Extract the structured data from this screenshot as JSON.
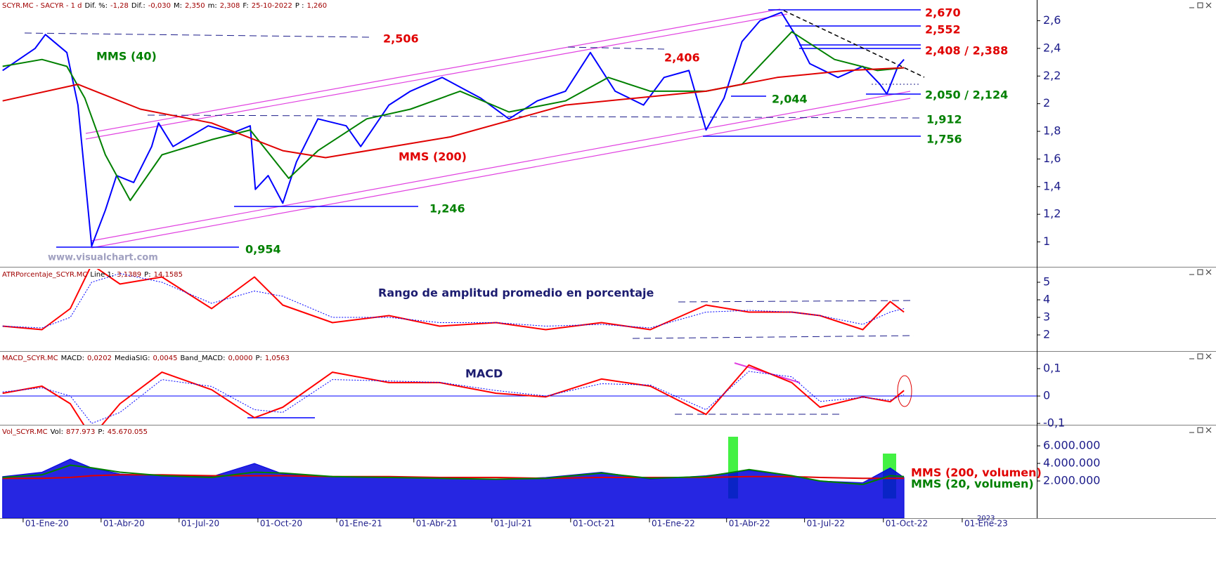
{
  "chart_data": [
    {
      "type": "line",
      "header": [
        "SCYR.MC - SACYR - 1 d",
        "Dif. %:",
        "-1,28",
        "Dif.:",
        "-0,030",
        "M:",
        "2,350",
        "m:",
        "2,308",
        "F:",
        "25-10-2022",
        "P :",
        "1,260"
      ],
      "xlim": [
        "2019-12-05",
        "2023-03-29"
      ],
      "ylim": [
        0.82,
        2.75
      ],
      "yticks": [
        1,
        {
          "value": 1.2,
          "label": "1,2"
        },
        {
          "value": 1.4,
          "label": "1,4"
        },
        {
          "value": 1.6,
          "label": "1,6"
        },
        {
          "value": 1.8,
          "label": "1,8"
        },
        2,
        {
          "value": 2.2,
          "label": "2,2"
        },
        {
          "value": 2.4,
          "label": "2,4"
        },
        {
          "value": 2.6,
          "label": "2,6"
        }
      ],
      "series": [
        {
          "color": "#0000ff",
          "x": [
            "2019-12-08",
            "2020-01-15",
            "2020-01-27",
            "2020-02-21",
            "2020-03-05",
            "2020-03-13",
            "2020-03-21",
            "2020-04-06",
            "2020-04-19",
            "2020-05-09",
            "2020-05-30",
            "2020-06-07",
            "2020-06-24",
            "2020-08-04",
            "2020-09-02",
            "2020-09-22",
            "2020-09-28",
            "2020-10-13",
            "2020-10-30",
            "2020-11-15",
            "2020-12-10",
            "2021-01-12",
            "2021-01-29",
            "2021-03-03",
            "2021-03-28",
            "2021-05-04",
            "2021-06-18",
            "2021-07-21",
            "2021-08-23",
            "2021-09-25",
            "2021-10-24",
            "2021-11-22",
            "2021-12-25",
            "2022-01-18",
            "2022-02-16",
            "2022-03-08",
            "2022-03-29",
            "2022-04-19",
            "2022-05-10",
            "2022-06-04",
            "2022-06-20",
            "2022-07-07",
            "2022-08-09",
            "2022-09-07",
            "2022-09-27",
            "2022-10-05",
            "2022-10-18",
            "2022-10-25"
          ],
          "values": [
            2.24,
            2.4,
            2.5,
            2.37,
            1.99,
            1.48,
            0.97,
            1.23,
            1.48,
            1.43,
            1.69,
            1.86,
            1.69,
            1.84,
            1.79,
            1.84,
            1.38,
            1.48,
            1.28,
            1.58,
            1.89,
            1.84,
            1.69,
            1.99,
            2.09,
            2.19,
            2.04,
            1.89,
            2.02,
            2.09,
            2.37,
            2.09,
            1.99,
            2.19,
            2.24,
            1.81,
            2.04,
            2.45,
            2.6,
            2.66,
            2.5,
            2.29,
            2.19,
            2.27,
            2.14,
            2.07,
            2.27,
            2.32
          ]
        },
        {
          "name": "MMS (40)",
          "color": "#008000",
          "x": [
            "2019-12-08",
            "2020-01-23",
            "2020-02-21",
            "2020-03-13",
            "2020-04-06",
            "2020-05-05",
            "2020-06-11",
            "2020-08-08",
            "2020-09-22",
            "2020-11-06",
            "2020-12-10",
            "2021-02-05",
            "2021-03-28",
            "2021-05-25",
            "2021-07-21",
            "2021-09-25",
            "2021-11-14",
            "2022-01-02",
            "2022-03-08",
            "2022-04-19",
            "2022-06-16",
            "2022-08-05",
            "2022-09-24",
            "2022-10-25"
          ],
          "values": [
            2.27,
            2.32,
            2.27,
            2.04,
            1.63,
            1.3,
            1.63,
            1.74,
            1.81,
            1.46,
            1.66,
            1.89,
            1.96,
            2.09,
            1.94,
            2.02,
            2.19,
            2.09,
            2.09,
            2.14,
            2.52,
            2.32,
            2.24,
            2.26
          ]
        },
        {
          "name": "MMS (200)",
          "color": "#e00000",
          "x": [
            "2019-12-08",
            "2020-03-05",
            "2020-05-17",
            "2020-08-08",
            "2020-10-30",
            "2020-12-19",
            "2021-05-14",
            "2021-09-25",
            "2022-03-08",
            "2022-05-30",
            "2022-08-20",
            "2022-10-25"
          ],
          "values": [
            2.02,
            2.14,
            1.96,
            1.86,
            1.66,
            1.61,
            1.76,
            1.99,
            2.09,
            2.19,
            2.24,
            2.26
          ]
        }
      ],
      "annotations": [
        "2,506",
        "2,406",
        "2,044",
        "1,246",
        "0,954",
        "www.visualchart.com",
        "2,670",
        "2,552",
        "2,408 / 2,388",
        "2,050 / 2,124",
        "1,912",
        "1,756"
      ]
    },
    {
      "type": "line",
      "header": [
        "ATRPorcentaje_SCYR.MC",
        "Line 1:",
        "3,1389",
        "P:",
        "14,1585"
      ],
      "title": "Rango de amplitud promedio en porcentaje",
      "xlim": [
        "2019-12-05",
        "2023-03-29"
      ],
      "ylim": [
        1.08,
        5.76
      ],
      "yticks": [
        2,
        3,
        4,
        5
      ],
      "series": [
        {
          "color": "#ff0000",
          "x": [
            "2019-12-08",
            "2020-01-23",
            "2020-02-25",
            "2020-03-21",
            "2020-04-23",
            "2020-06-11",
            "2020-08-08",
            "2020-09-27",
            "2020-10-30",
            "2020-12-27",
            "2021-03-03",
            "2021-05-01",
            "2021-07-06",
            "2021-09-02",
            "2021-11-06",
            "2022-01-02",
            "2022-03-08",
            "2022-04-27",
            "2022-06-16",
            "2022-07-19",
            "2022-09-07",
            "2022-10-09",
            "2022-10-25"
          ],
          "values": [
            2.5,
            2.3,
            3.5,
            6.0,
            4.9,
            5.3,
            3.5,
            5.3,
            3.7,
            2.7,
            3.1,
            2.5,
            2.7,
            2.3,
            2.7,
            2.3,
            3.7,
            3.3,
            3.3,
            3.1,
            2.3,
            3.9,
            3.3
          ]
        },
        {
          "color": "#0000ff",
          "dash": true,
          "x": [
            "2019-12-08",
            "2020-01-23",
            "2020-02-25",
            "2020-03-21",
            "2020-04-23",
            "2020-06-11",
            "2020-08-08",
            "2020-09-27",
            "2020-10-30",
            "2020-12-27",
            "2021-03-03",
            "2021-05-01",
            "2021-07-06",
            "2021-09-02",
            "2021-11-06",
            "2022-01-02",
            "2022-03-08",
            "2022-04-27",
            "2022-06-16",
            "2022-07-19",
            "2022-09-07",
            "2022-10-09",
            "2022-10-25"
          ],
          "values": [
            2.5,
            2.4,
            3.0,
            5.0,
            5.5,
            5.0,
            3.8,
            4.5,
            4.2,
            3.0,
            3.0,
            2.7,
            2.7,
            2.5,
            2.6,
            2.4,
            3.3,
            3.4,
            3.3,
            3.1,
            2.6,
            3.3,
            3.5
          ]
        }
      ]
    },
    {
      "type": "line",
      "header": [
        "MACD_SCYR.MC",
        "MACD:",
        "0,0202",
        "MediaSIG:",
        "0,0045",
        "Band_MACD:",
        "0,0000",
        "P:",
        "1,0563"
      ],
      "title": "MACD",
      "zero_line": true,
      "xlim": [
        "2019-12-05",
        "2023-03-29"
      ],
      "ylim": [
        -0.105,
        0.159
      ],
      "yticks": [
        {
          "value": -0.1,
          "label": "-0,1"
        },
        0,
        {
          "value": 0.1,
          "label": "0,1"
        }
      ],
      "series": [
        {
          "color": "#ff0000",
          "x": [
            "2019-12-08",
            "2020-01-23",
            "2020-02-25",
            "2020-03-21",
            "2020-04-23",
            "2020-06-11",
            "2020-08-08",
            "2020-09-27",
            "2020-10-30",
            "2020-12-27",
            "2021-03-03",
            "2021-05-01",
            "2021-07-06",
            "2021-09-02",
            "2021-11-06",
            "2022-01-02",
            "2022-03-08",
            "2022-04-27",
            "2022-06-16",
            "2022-07-19",
            "2022-09-07",
            "2022-10-09",
            "2022-10-25"
          ],
          "values": [
            0.01,
            0.036,
            -0.028,
            -0.15,
            -0.028,
            0.087,
            0.023,
            -0.079,
            -0.041,
            0.087,
            0.049,
            0.049,
            0.01,
            -0.003,
            0.062,
            0.036,
            -0.067,
            0.113,
            0.049,
            -0.041,
            -0.003,
            -0.021,
            0.02
          ]
        },
        {
          "color": "#0000ff",
          "dash": true,
          "x": [
            "2019-12-08",
            "2020-01-23",
            "2020-02-25",
            "2020-03-21",
            "2020-04-23",
            "2020-06-11",
            "2020-08-08",
            "2020-09-27",
            "2020-10-30",
            "2020-12-27",
            "2021-03-03",
            "2021-05-01",
            "2021-07-06",
            "2021-09-02",
            "2021-11-06",
            "2022-01-02",
            "2022-03-08",
            "2022-04-27",
            "2022-06-16",
            "2022-07-19",
            "2022-09-07",
            "2022-10-09",
            "2022-10-25"
          ],
          "values": [
            0.015,
            0.03,
            0.0,
            -0.1,
            -0.06,
            0.06,
            0.035,
            -0.05,
            -0.06,
            0.06,
            0.055,
            0.05,
            0.02,
            0.0,
            0.045,
            0.04,
            -0.05,
            0.09,
            0.07,
            -0.02,
            -0.005,
            -0.015,
            0.005
          ]
        }
      ]
    },
    {
      "type": "area",
      "header": [
        "Vol_SCYR.MC",
        "Vol:",
        "877.973",
        "P:",
        "45.670.055"
      ],
      "year_label": "2023",
      "xlim": [
        "2019-12-05",
        "2023-03-29"
      ],
      "ylim": [
        -2240000,
        8240000
      ],
      "yticks": [
        {
          "value": 2000000,
          "label": "2.000.000"
        },
        {
          "value": 4000000,
          "label": "4.000.000"
        },
        {
          "value": 6000000,
          "label": "6.000.000"
        }
      ],
      "xticks": [
        {
          "value": "2020-01-01",
          "label": "01-Ene-20"
        },
        {
          "value": "2020-04-01",
          "label": "01-Abr-20"
        },
        {
          "value": "2020-07-01",
          "label": "01-Jul-20"
        },
        {
          "value": "2020-10-01",
          "label": "01-Oct-20"
        },
        {
          "value": "2021-01-01",
          "label": "01-Ene-21"
        },
        {
          "value": "2021-04-01",
          "label": "01-Abr-21"
        },
        {
          "value": "2021-07-01",
          "label": "01-Jul-21"
        },
        {
          "value": "2021-10-01",
          "label": "01-Oct-21"
        },
        {
          "value": "2022-01-01",
          "label": "01-Ene-22"
        },
        {
          "value": "2022-04-01",
          "label": "01-Abr-22"
        },
        {
          "value": "2022-07-01",
          "label": "01-Jul-22"
        },
        {
          "value": "2022-10-01",
          "label": "01-Oct-22"
        },
        {
          "value": "2023-01-01",
          "label": "01-Ene-23"
        }
      ],
      "series": [
        {
          "color": "#0000dd",
          "fill": true,
          "x": [
            "2019-12-08",
            "2020-01-23",
            "2020-02-25",
            "2020-03-21",
            "2020-04-23",
            "2020-06-11",
            "2020-08-08",
            "2020-09-27",
            "2020-10-30",
            "2020-12-27",
            "2021-03-03",
            "2021-05-01",
            "2021-07-06",
            "2021-09-02",
            "2021-11-06",
            "2022-01-02",
            "2022-03-08",
            "2022-04-27",
            "2022-06-16",
            "2022-07-19",
            "2022-09-07",
            "2022-10-09",
            "2022-10-25"
          ],
          "values": [
            2500000,
            3000000,
            4500000,
            3500000,
            2800000,
            2600000,
            2500000,
            4000000,
            2800000,
            2500000,
            2400000,
            2300000,
            2200000,
            2400000,
            3000000,
            2200000,
            2600000,
            3200000,
            2600000,
            2000000,
            1800000,
            3500000,
            2400000
          ]
        },
        {
          "name": "MMS (200, volumen)",
          "color": "#e00000",
          "x": [
            "2019-12-08",
            "2020-01-23",
            "2020-02-25",
            "2020-03-21",
            "2020-04-23",
            "2020-06-11",
            "2020-08-08",
            "2020-09-27",
            "2020-10-30",
            "2020-12-27",
            "2021-03-03",
            "2021-05-01",
            "2021-07-06",
            "2021-09-02",
            "2021-11-06",
            "2022-01-02",
            "2022-03-08",
            "2022-04-27",
            "2022-06-16",
            "2022-07-19",
            "2022-09-07",
            "2022-10-09",
            "2022-10-25"
          ],
          "values": [
            2300000,
            2300000,
            2400000,
            2600000,
            2700000,
            2700000,
            2600000,
            2600000,
            2600000,
            2500000,
            2500000,
            2400000,
            2400000,
            2300000,
            2400000,
            2400000,
            2400000,
            2500000,
            2500000,
            2400000,
            2300000,
            2300000,
            2300000
          ]
        },
        {
          "name": "MMS (20, volumen)",
          "color": "#008000",
          "x": [
            "2019-12-08",
            "2020-01-23",
            "2020-02-25",
            "2020-03-21",
            "2020-04-23",
            "2020-06-11",
            "2020-08-08",
            "2020-09-27",
            "2020-10-30",
            "2020-12-27",
            "2021-03-03",
            "2021-05-01",
            "2021-07-06",
            "2021-09-02",
            "2021-11-06",
            "2022-01-02",
            "2022-03-08",
            "2022-04-27",
            "2022-06-16",
            "2022-07-19",
            "2022-09-07",
            "2022-10-09",
            "2022-10-25"
          ],
          "values": [
            2400000,
            2700000,
            3800000,
            3500000,
            3000000,
            2600000,
            2400000,
            3000000,
            2900000,
            2500000,
            2400000,
            2300000,
            2200000,
            2300000,
            2900000,
            2300000,
            2500000,
            3300000,
            2600000,
            2000000,
            1600000,
            2600000,
            2500000
          ]
        }
      ]
    }
  ]
}
